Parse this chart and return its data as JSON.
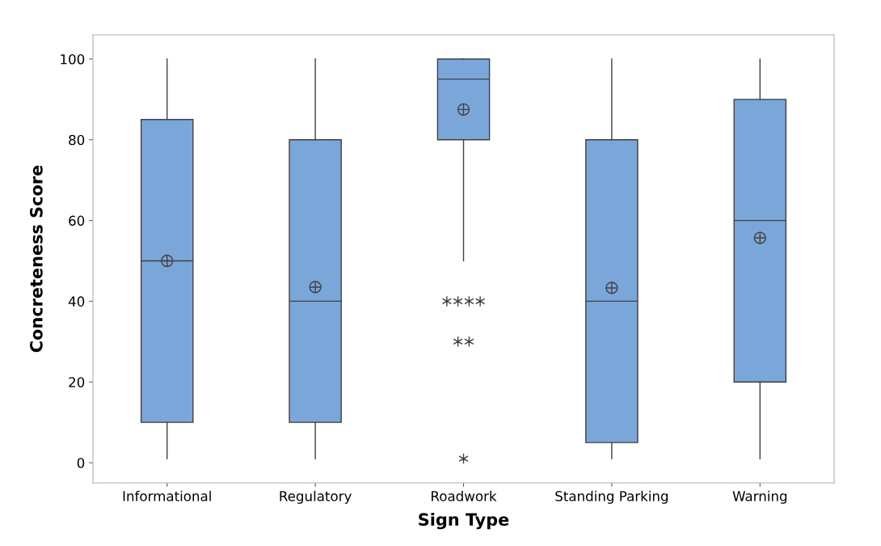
{
  "chart_data": {
    "type": "box",
    "xlabel": "Sign Type",
    "ylabel": "Concreteness Score",
    "categories": [
      "Informational",
      "Regulatory",
      "Roadwork",
      "Standing Parking",
      "Warning"
    ],
    "boxes": [
      {
        "low": 1,
        "q1": 10,
        "median": 50,
        "q3": 85,
        "high": 100,
        "mean": 50
      },
      {
        "low": 1,
        "q1": 10,
        "median": 40,
        "q3": 80,
        "high": 100,
        "mean": 43.5
      },
      {
        "low": 50,
        "q1": 80,
        "median": 95,
        "q3": 100,
        "high": 100,
        "mean": 87.5,
        "outliers": [
          40,
          40,
          40,
          40,
          30,
          30,
          1
        ]
      },
      {
        "low": 1,
        "q1": 5,
        "median": 40,
        "q3": 80,
        "high": 100,
        "mean": 43.3
      },
      {
        "low": 1,
        "q1": 20,
        "median": 60,
        "q3": 90,
        "high": 100,
        "mean": 55.7
      }
    ],
    "color": "#7ba6da",
    "ylim": [
      -5,
      106
    ],
    "yticks": [
      0,
      20,
      40,
      60,
      80,
      100
    ],
    "grid": false
  }
}
